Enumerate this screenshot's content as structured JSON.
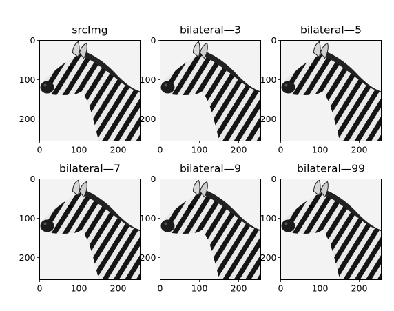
{
  "figure": {
    "panels": [
      {
        "title": "srcImg"
      },
      {
        "title": "bilateral—3"
      },
      {
        "title": "bilateral—5"
      },
      {
        "title": "bilateral—7"
      },
      {
        "title": "bilateral—9"
      },
      {
        "title": "bilateral—99"
      }
    ],
    "x_ticks": [
      "0",
      "100",
      "200"
    ],
    "y_ticks": [
      "0",
      "100",
      "200"
    ],
    "image_subject": "zebra-head-and-neck",
    "colors": {
      "background": "#f3f3f3",
      "stripe_dark": "#151515",
      "stripe_light": "#f2f2f2"
    }
  }
}
